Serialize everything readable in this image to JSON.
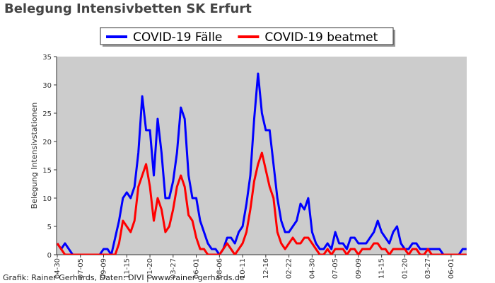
{
  "chart_data": {
    "type": "line",
    "title": "Belegung Intensivbetten SK Erfurt",
    "y_label": "Belegung Intensivstationen",
    "footer": "Grafik: Rainer Gerhards, Daten: DIVI | www.rainer-gerhards.de",
    "legend": "top",
    "background": "#cccccc",
    "categories": [
      "04-30",
      null,
      null,
      null,
      null,
      null,
      "07-05",
      null,
      null,
      null,
      null,
      null,
      "09-09",
      null,
      null,
      null,
      null,
      null,
      "11-15",
      null,
      null,
      null,
      null,
      null,
      "01-20",
      null,
      null,
      null,
      null,
      null,
      "03-27",
      null,
      null,
      null,
      null,
      null,
      "06-01",
      null,
      null,
      null,
      null,
      null,
      "08-06",
      null,
      null,
      null,
      null,
      null,
      "10-11",
      null,
      null,
      null,
      null,
      null,
      "12-16",
      null,
      null,
      null,
      null,
      null,
      "02-22",
      null,
      null,
      null,
      null,
      null,
      "04-30",
      null,
      null,
      null,
      null,
      null,
      "07-05",
      null,
      null,
      null,
      null,
      null,
      "09-09",
      null,
      null,
      null,
      null,
      null,
      "11-15",
      null,
      null,
      null,
      null,
      null,
      "01-20",
      null,
      null,
      null,
      null,
      null,
      "03-27",
      null,
      null,
      null,
      null,
      null,
      "06-01",
      null,
      null,
      null,
      null
    ],
    "series": [
      {
        "name": "COVID-19 Fälle",
        "color": "#0000ff",
        "values": [
          2,
          1,
          2,
          1,
          0,
          0,
          0,
          0,
          0,
          0,
          0,
          0,
          1,
          1,
          0,
          3,
          6,
          10,
          11,
          10,
          12,
          18,
          28,
          22,
          22,
          14,
          24,
          18,
          10,
          10,
          13,
          18,
          26,
          24,
          14,
          10,
          10,
          6,
          4,
          2,
          1,
          1,
          0,
          1,
          3,
          3,
          2,
          4,
          5,
          9,
          14,
          24,
          32,
          25,
          22,
          22,
          16,
          10,
          6,
          4,
          4,
          5,
          6,
          9,
          8,
          10,
          4,
          2,
          1,
          1,
          2,
          1,
          4,
          2,
          2,
          1,
          3,
          3,
          2,
          2,
          2,
          3,
          4,
          6,
          4,
          3,
          2,
          4,
          5,
          2,
          1,
          1,
          2,
          2,
          1,
          1,
          1,
          1,
          1,
          1,
          0,
          0,
          0,
          0,
          0,
          1,
          1
        ]
      },
      {
        "name": "COVID-19 beatmet",
        "color": "#ff0000",
        "values": [
          2,
          1,
          0,
          0,
          0,
          0,
          0,
          0,
          0,
          0,
          0,
          0,
          0,
          0,
          0,
          0,
          2,
          6,
          5,
          4,
          6,
          12,
          14,
          16,
          12,
          6,
          10,
          8,
          4,
          5,
          8,
          12,
          14,
          12,
          7,
          6,
          3,
          1,
          1,
          0,
          0,
          0,
          0,
          1,
          2,
          1,
          0,
          1,
          2,
          4,
          8,
          13,
          16,
          18,
          15,
          12,
          10,
          4,
          2,
          1,
          2,
          3,
          2,
          2,
          3,
          3,
          2,
          1,
          0,
          0,
          1,
          0,
          1,
          1,
          1,
          0,
          1,
          1,
          0,
          1,
          1,
          1,
          2,
          2,
          1,
          1,
          0,
          1,
          1,
          1,
          1,
          0,
          1,
          1,
          0,
          0,
          1,
          0,
          0,
          0,
          0,
          0,
          0,
          0,
          0,
          0,
          0
        ]
      }
    ],
    "ylim": [
      0,
      35
    ],
    "yticks": [
      0,
      5,
      10,
      15,
      20,
      25,
      30,
      35
    ]
  }
}
